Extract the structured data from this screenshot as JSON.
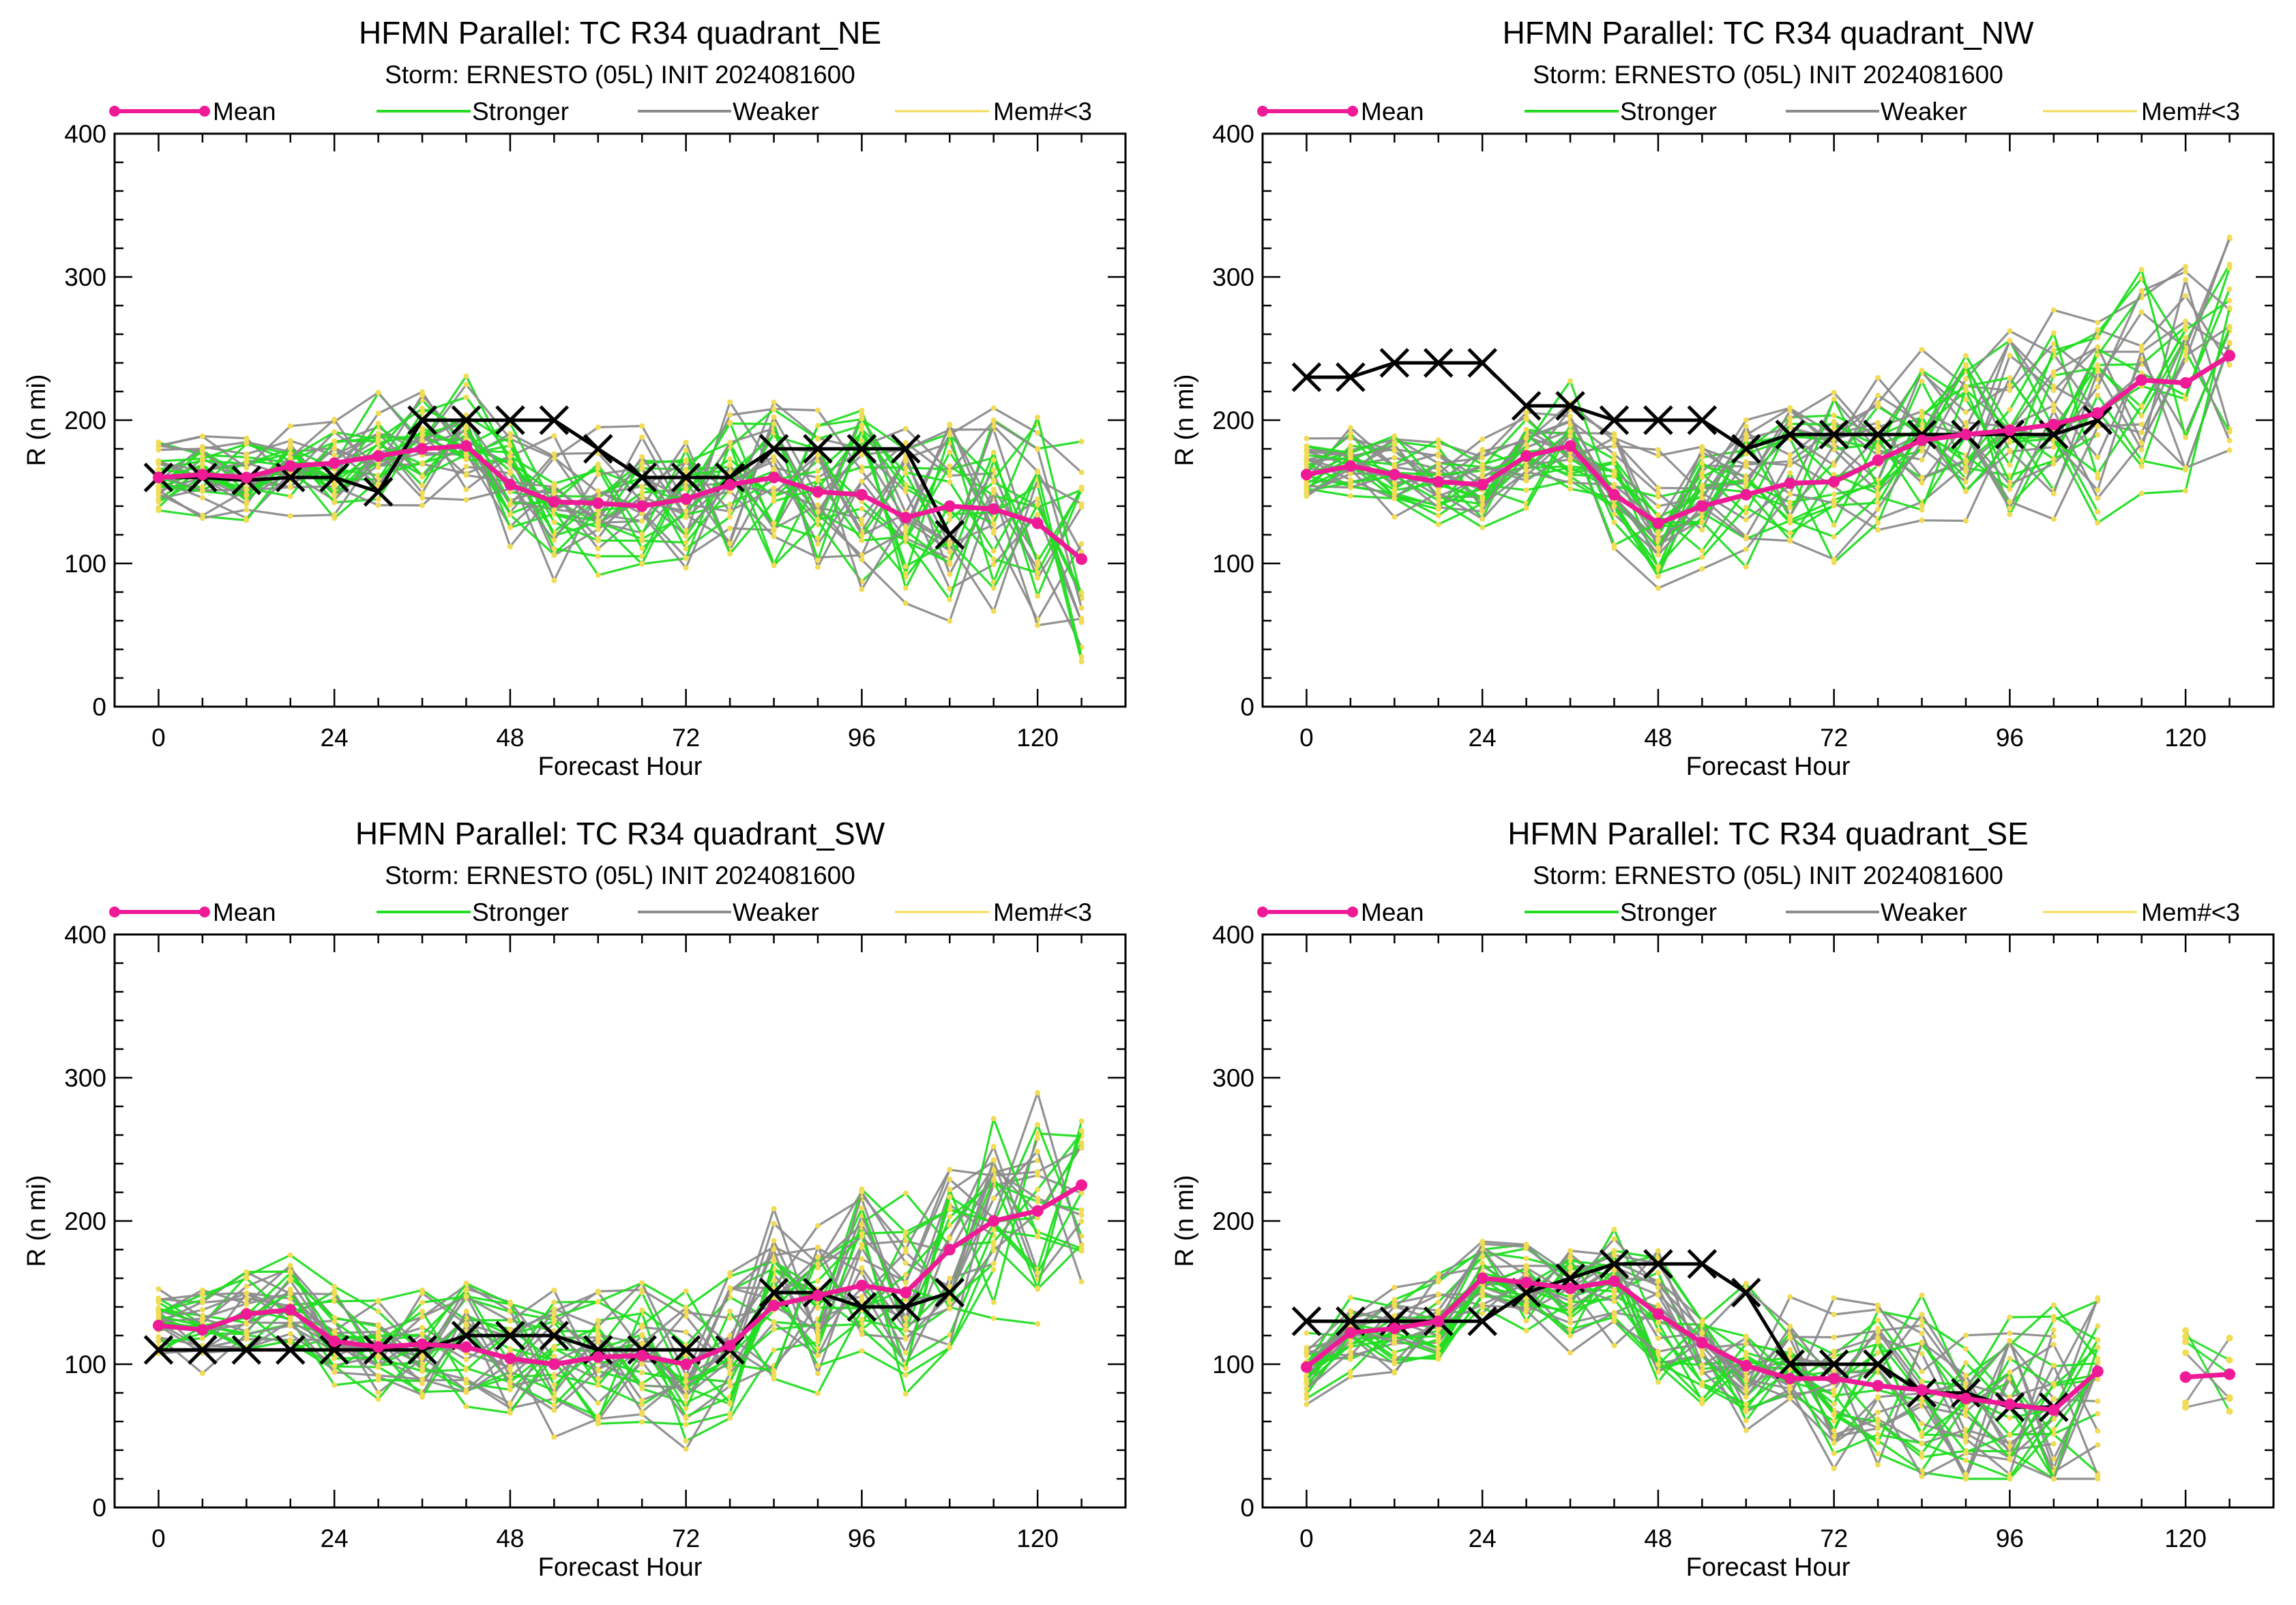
{
  "legend": {
    "mean": "Mean",
    "stronger": "Stronger",
    "weaker": "Weaker",
    "mem": "Mem#<3"
  },
  "colors": {
    "mean": "#ee1a96",
    "stronger": "#22dd22",
    "weaker": "#8c8c8c",
    "mem": "#f0dc55",
    "best_track": "#000000"
  },
  "chart_data": [
    {
      "type": "line",
      "title": "HFMN Parallel: TC  R34 quadrant_NE",
      "subtitle": "Storm: ERNESTO (05L) INIT 2024081600",
      "xlabel": "Forecast Hour",
      "ylabel": "R (n mi)",
      "xlim": [
        -6,
        132
      ],
      "ylim": [
        0,
        400
      ],
      "xticks": [
        0,
        24,
        48,
        72,
        96,
        120
      ],
      "yticks": [
        0,
        100,
        200,
        300,
        400
      ],
      "best_track": {
        "x": [
          0,
          6,
          12,
          18,
          24,
          30,
          36,
          42,
          48,
          54,
          60,
          66,
          72,
          78,
          84,
          90,
          96,
          102,
          108
        ],
        "y": [
          160,
          160,
          158,
          160,
          160,
          150,
          200,
          200,
          200,
          200,
          180,
          160,
          160,
          160,
          180,
          180,
          180,
          180,
          120
        ]
      },
      "mean": {
        "x": [
          0,
          6,
          12,
          18,
          24,
          30,
          36,
          42,
          48,
          54,
          60,
          66,
          72,
          78,
          84,
          90,
          96,
          102,
          108,
          114,
          120,
          126
        ],
        "y": [
          160,
          162,
          160,
          168,
          170,
          175,
          180,
          182,
          155,
          143,
          142,
          140,
          145,
          155,
          160,
          150,
          148,
          132,
          140,
          138,
          128,
          103
        ]
      }
    },
    {
      "type": "line",
      "title": "HFMN Parallel: TC  R34 quadrant_NW",
      "subtitle": "Storm: ERNESTO (05L) INIT 2024081600",
      "xlabel": "Forecast Hour",
      "ylabel": "R (n mi)",
      "xlim": [
        -6,
        132
      ],
      "ylim": [
        0,
        400
      ],
      "xticks": [
        0,
        24,
        48,
        72,
        96,
        120
      ],
      "yticks": [
        0,
        100,
        200,
        300,
        400
      ],
      "best_track": {
        "x": [
          0,
          6,
          12,
          18,
          24,
          30,
          36,
          42,
          48,
          54,
          60,
          66,
          72,
          78,
          84,
          90,
          96,
          102,
          108
        ],
        "y": [
          230,
          230,
          240,
          240,
          240,
          210,
          210,
          200,
          200,
          200,
          180,
          190,
          190,
          190,
          190,
          190,
          190,
          190,
          200
        ]
      },
      "mean": {
        "x": [
          0,
          6,
          12,
          18,
          24,
          30,
          36,
          42,
          48,
          54,
          60,
          66,
          72,
          78,
          84,
          90,
          96,
          102,
          108,
          114,
          120,
          126
        ],
        "y": [
          162,
          168,
          162,
          157,
          155,
          175,
          182,
          148,
          128,
          140,
          148,
          156,
          157,
          172,
          186,
          190,
          193,
          197,
          205,
          228,
          226,
          245
        ]
      }
    },
    {
      "type": "line",
      "title": "HFMN Parallel: TC  R34 quadrant_SW",
      "subtitle": "Storm: ERNESTO (05L) INIT 2024081600",
      "xlabel": "Forecast Hour",
      "ylabel": "R (n mi)",
      "xlim": [
        -6,
        132
      ],
      "ylim": [
        0,
        400
      ],
      "xticks": [
        0,
        24,
        48,
        72,
        96,
        120
      ],
      "yticks": [
        0,
        100,
        200,
        300,
        400
      ],
      "best_track": {
        "x": [
          0,
          6,
          12,
          18,
          24,
          30,
          36,
          42,
          48,
          54,
          60,
          66,
          72,
          78,
          84,
          90,
          96,
          102,
          108
        ],
        "y": [
          110,
          110,
          110,
          110,
          110,
          110,
          110,
          120,
          120,
          120,
          110,
          110,
          110,
          110,
          150,
          150,
          140,
          140,
          150
        ]
      },
      "mean": {
        "x": [
          0,
          6,
          12,
          18,
          24,
          30,
          36,
          42,
          48,
          54,
          60,
          66,
          72,
          78,
          84,
          90,
          96,
          102,
          108,
          114,
          120,
          126
        ],
        "y": [
          127,
          124,
          135,
          138,
          116,
          112,
          114,
          112,
          104,
          100,
          105,
          106,
          100,
          113,
          141,
          148,
          155,
          150,
          180,
          200,
          207,
          225
        ]
      }
    },
    {
      "type": "line",
      "title": "HFMN Parallel: TC  R34 quadrant_SE",
      "subtitle": "Storm: ERNESTO (05L) INIT 2024081600",
      "xlabel": "Forecast Hour",
      "ylabel": "R (n mi)",
      "xlim": [
        -6,
        132
      ],
      "ylim": [
        0,
        400
      ],
      "xticks": [
        0,
        24,
        48,
        72,
        96,
        120
      ],
      "yticks": [
        0,
        100,
        200,
        300,
        400
      ],
      "best_track": {
        "x": [
          0,
          6,
          12,
          18,
          24,
          30,
          36,
          42,
          48,
          54,
          60,
          66,
          72,
          78,
          84,
          90,
          96,
          102
        ],
        "y": [
          130,
          130,
          130,
          130,
          130,
          150,
          160,
          170,
          170,
          170,
          150,
          100,
          100,
          100,
          80,
          80,
          70,
          70
        ]
      },
      "mean": {
        "x": [
          0,
          6,
          12,
          18,
          24,
          30,
          36,
          42,
          48,
          54,
          60,
          66,
          72,
          78,
          84,
          90,
          96,
          102,
          108,
          120,
          126
        ],
        "y": [
          98,
          122,
          125,
          130,
          160,
          157,
          153,
          158,
          135,
          115,
          99,
          90,
          90,
          85,
          82,
          76,
          72,
          68,
          95,
          91,
          93
        ],
        "break_after_index": 18
      }
    }
  ]
}
